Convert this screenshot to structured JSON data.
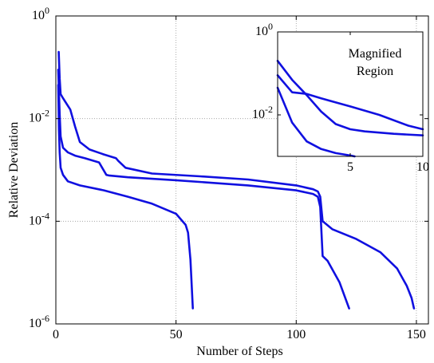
{
  "chart_data": [
    {
      "type": "line",
      "title": "",
      "xlabel": "Number of Steps",
      "ylabel": "Relative Deviation",
      "yscale": "log",
      "xlim": [
        0,
        155
      ],
      "ylim": [
        1e-06,
        1
      ],
      "xticks": [
        {
          "value": 0,
          "label": "0"
        },
        {
          "value": 50,
          "label": "50"
        },
        {
          "value": 100,
          "label": "100"
        },
        {
          "value": 150,
          "label": "150"
        }
      ],
      "yticks": [
        {
          "value": 1,
          "base": "10",
          "exp": "0"
        },
        {
          "value": 0.01,
          "base": "10",
          "exp": "-2"
        },
        {
          "value": 0.0001,
          "base": "10",
          "exp": "-4"
        },
        {
          "value": 1e-06,
          "base": "10",
          "exp": "-6"
        }
      ],
      "grid": true,
      "line_color": "#1010e0",
      "series": [
        {
          "x": [
            1,
            1.6,
            2,
            3,
            5,
            8,
            12,
            18,
            21,
            22,
            30,
            50,
            80,
            100,
            107,
            109,
            110,
            111,
            113,
            118,
            122
          ],
          "y": [
            0.09,
            0.012,
            0.0045,
            0.0027,
            0.0022,
            0.0019,
            0.0017,
            0.0014,
            0.0008,
            0.00078,
            0.00072,
            0.00063,
            0.0005,
            0.0004,
            0.00034,
            0.0003,
            0.00019,
            2.1e-05,
            1.7e-05,
            6.5e-06,
            2e-06
          ]
        },
        {
          "x": [
            1,
            1.3,
            1.6,
            2,
            3,
            5,
            10,
            20,
            30,
            40,
            50,
            54,
            55,
            56,
            57
          ],
          "y": [
            0.045,
            0.006,
            0.0022,
            0.0011,
            0.0008,
            0.0006,
            0.0005,
            0.0004,
            0.0003,
            0.00022,
            0.00014,
            8.5e-05,
            6e-05,
            1.8e-05,
            2e-06
          ]
        },
        {
          "x": [
            1.2,
            1.6,
            2,
            3,
            6,
            8,
            10,
            14,
            20,
            25,
            26,
            29,
            40,
            60,
            80,
            100,
            107,
            109,
            110,
            111,
            115,
            125,
            135,
            142,
            146,
            148,
            149
          ],
          "y": [
            0.2,
            0.06,
            0.03,
            0.025,
            0.015,
            0.007,
            0.0035,
            0.0025,
            0.002,
            0.0017,
            0.0015,
            0.0011,
            0.00085,
            0.00075,
            0.00065,
            0.0005,
            0.00042,
            0.00038,
            0.0003,
            0.0001,
            7e-05,
            4.5e-05,
            2.5e-05,
            1.2e-05,
            5.5e-06,
            3.2e-06,
            2e-06
          ]
        }
      ]
    },
    {
      "type": "line",
      "title": "Magnified Region",
      "yscale": "log",
      "xlim": [
        0,
        10
      ],
      "ylim": [
        0.001,
        1
      ],
      "xticks": [
        {
          "value": 5,
          "label": "5"
        },
        {
          "value": 10,
          "label": "10"
        }
      ],
      "yticks": [
        {
          "value": 1,
          "base": "10",
          "exp": "0"
        },
        {
          "value": 0.01,
          "base": "10",
          "exp": "-2"
        }
      ],
      "grid": false,
      "line_color": "#1010e0",
      "series": [
        {
          "x": [
            0,
            1,
            2,
            3,
            4,
            5,
            6,
            8,
            10
          ],
          "y": [
            0.2,
            0.07,
            0.03,
            0.012,
            0.006,
            0.0045,
            0.004,
            0.0035,
            0.0032
          ]
        },
        {
          "x": [
            0,
            1,
            2,
            3,
            5,
            7,
            9,
            10
          ],
          "y": [
            0.09,
            0.035,
            0.032,
            0.025,
            0.016,
            0.01,
            0.0055,
            0.0045
          ]
        },
        {
          "x": [
            0,
            1,
            2,
            3,
            4,
            5,
            5.3
          ],
          "y": [
            0.045,
            0.0065,
            0.0023,
            0.0015,
            0.0012,
            0.00105,
            0.001
          ]
        }
      ]
    }
  ]
}
